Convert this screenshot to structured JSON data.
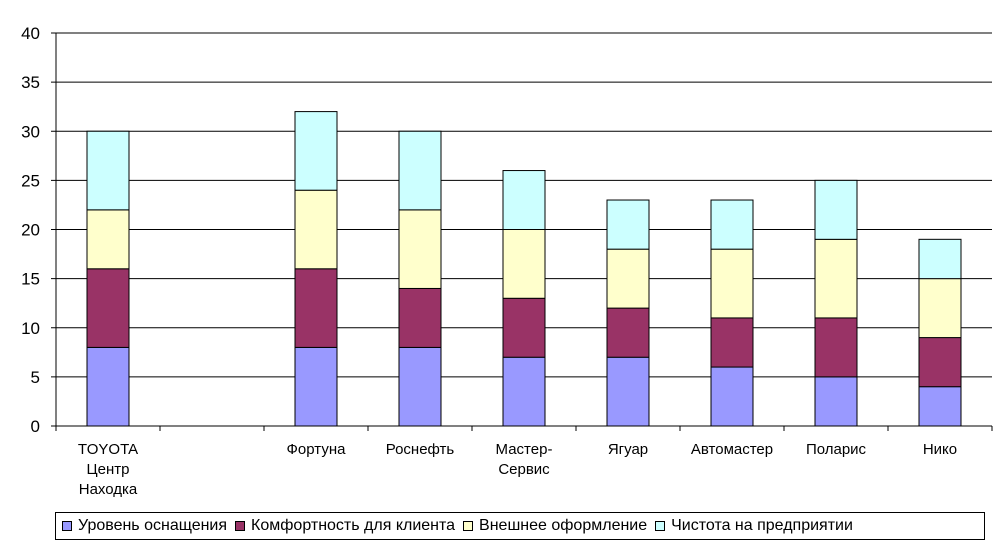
{
  "chart_data": {
    "type": "bar",
    "stacked": true,
    "categories": [
      "TOYOTA Центр Находка",
      "",
      "Фортуна",
      "Роснефть",
      "Мастер-Сервис",
      "Ягуар",
      "Автомастер",
      "Поларис",
      "Нико"
    ],
    "category_lines": [
      [
        "TOYOTA",
        "Центр",
        "Находка"
      ],
      [],
      [
        "Фортуна"
      ],
      [
        "Роснефть"
      ],
      [
        "Мастер-",
        "Сервис"
      ],
      [
        "Ягуар"
      ],
      [
        "Автомастер"
      ],
      [
        "Поларис"
      ],
      [
        "Нико"
      ]
    ],
    "series": [
      {
        "name": "Уровень оснащения",
        "color": "#9999ff",
        "values": [
          8,
          null,
          8,
          8,
          7,
          7,
          6,
          5,
          4
        ]
      },
      {
        "name": "Комфортность для клиента",
        "color": "#993366",
        "values": [
          8,
          null,
          8,
          6,
          6,
          5,
          5,
          6,
          5
        ]
      },
      {
        "name": "Внешнее оформление",
        "color": "#ffffcc",
        "values": [
          6,
          null,
          8,
          8,
          7,
          6,
          7,
          8,
          6
        ]
      },
      {
        "name": "Чистота на предприятии",
        "color": "#ccffff",
        "values": [
          8,
          null,
          8,
          8,
          6,
          5,
          5,
          6,
          4
        ]
      }
    ],
    "yticks": [
      "0",
      "5",
      "10",
      "15",
      "20",
      "25",
      "30",
      "35",
      "40"
    ],
    "ylim": [
      0,
      40
    ],
    "grid": true,
    "legend_position": "bottom"
  }
}
